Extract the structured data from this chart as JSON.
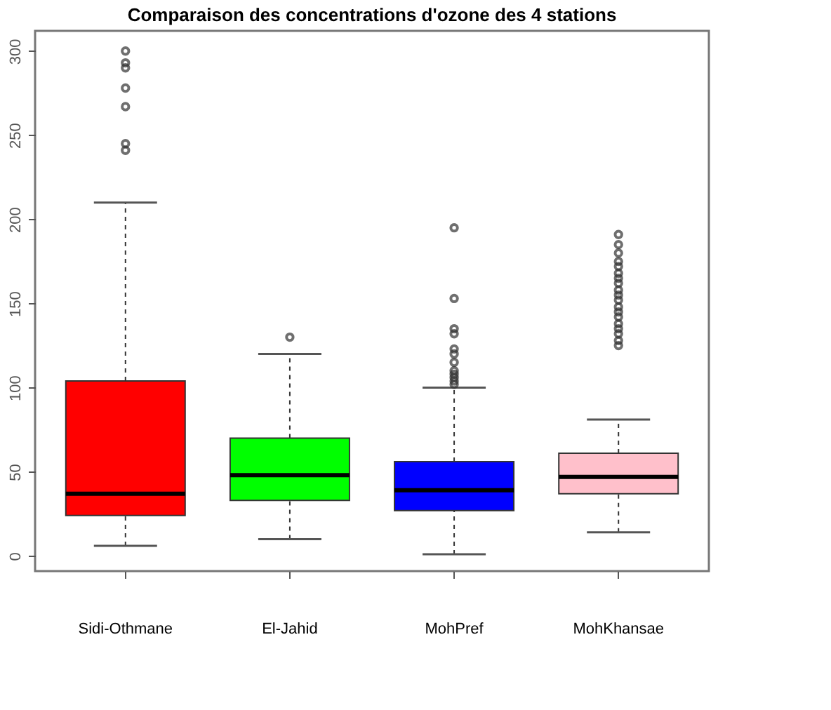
{
  "chart_data": {
    "type": "box",
    "title": "Comparaison des concentrations d'ozone des 4 stations",
    "categories": [
      "Sidi-Othmane",
      "El-Jahid",
      "MohPref",
      "MohKhansae"
    ],
    "colors": [
      "#ff0000",
      "#00ff00",
      "#0000ff",
      "#ffc0cb"
    ],
    "boxes": [
      {
        "low": 6,
        "q1": 24,
        "median": 37,
        "q3": 104,
        "high": 210,
        "outliers": [
          241,
          245,
          267,
          278,
          290,
          293,
          300
        ]
      },
      {
        "low": 10,
        "q1": 33,
        "median": 48,
        "q3": 70,
        "high": 120,
        "outliers": [
          130
        ]
      },
      {
        "low": 1,
        "q1": 27,
        "median": 39,
        "q3": 56,
        "high": 100,
        "outliers": [
          102,
          104,
          106,
          108,
          110,
          115,
          120,
          123,
          132,
          135,
          153,
          195
        ]
      },
      {
        "low": 14,
        "q1": 37,
        "median": 47,
        "q3": 61,
        "high": 81,
        "outliers": [
          125,
          128,
          132,
          135,
          138,
          142,
          145,
          148,
          152,
          155,
          158,
          162,
          165,
          168,
          172,
          175,
          180,
          185,
          191
        ]
      }
    ],
    "ylim": [
      -9,
      312
    ],
    "yticks": [
      0,
      50,
      100,
      150,
      200,
      250,
      300
    ]
  }
}
